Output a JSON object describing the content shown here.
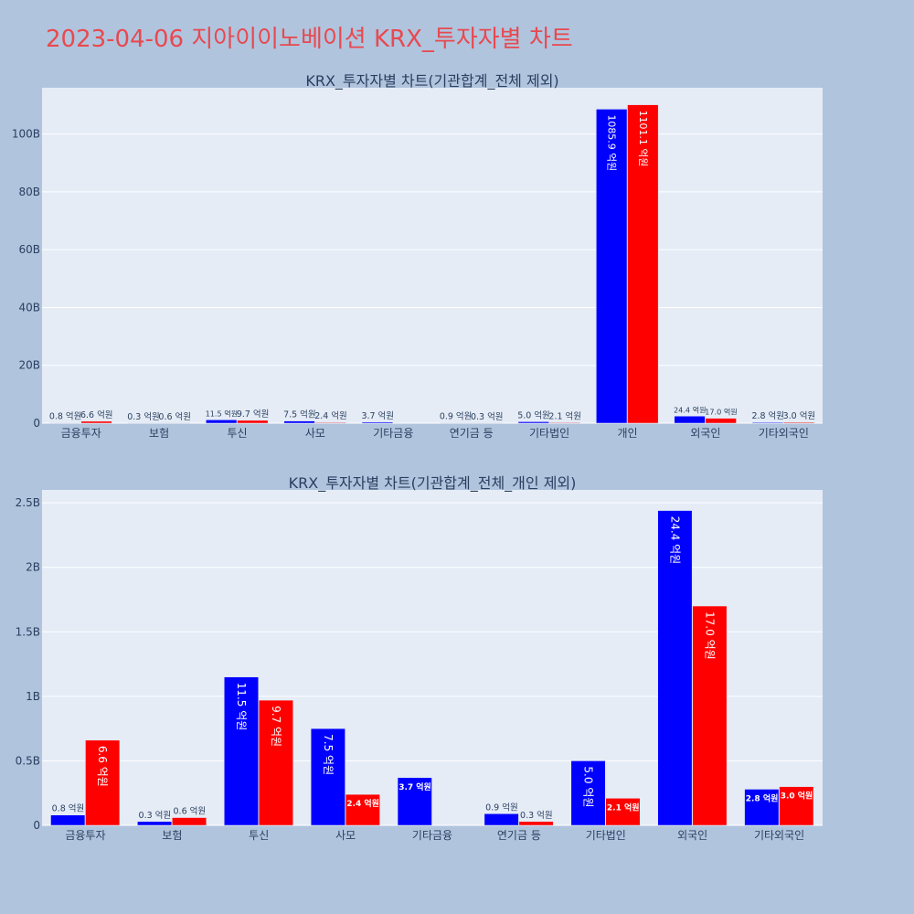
{
  "page": {
    "title": "2023-04-06 지아이이노베이션 KRX_투자자별 차트",
    "background": "#b0c4de",
    "title_color": "#e8494f"
  },
  "colors": {
    "buy": "#0000ff",
    "sell": "#ff0000",
    "plot_bg": "#e5ecf6"
  },
  "chart_data": [
    {
      "type": "bar",
      "title": "KRX_투자자별 차트(기관합계_전체 제외)",
      "categories": [
        "금융투자",
        "보험",
        "투신",
        "사모",
        "기타금융",
        "연기금 등",
        "기타법인",
        "개인",
        "외국인",
        "기타외국인"
      ],
      "series": [
        {
          "color": "#0000ff",
          "values": [
            0.08,
            0.03,
            1.15,
            0.75,
            0.37,
            0.09,
            0.5,
            108.59,
            2.44,
            0.28
          ],
          "labels": [
            "0.8 억원",
            "0.3 억원",
            "11.5 억원",
            "7.5 억원",
            "3.7 억원",
            "0.9 억원",
            "5.0 억원",
            "1085.9 억원",
            "24.4 억원",
            "2.8 억원"
          ]
        },
        {
          "color": "#ff0000",
          "values": [
            0.66,
            0.06,
            0.97,
            0.24,
            0.0,
            0.03,
            0.21,
            110.11,
            1.7,
            0.3
          ],
          "labels": [
            "6.6 억원",
            "0.6 억원",
            "9.7 억원",
            "2.4 억원",
            "",
            "0.3 억원",
            "2.1 억원",
            "1101.1 억원",
            "17.0 억원",
            "3.0 억원"
          ]
        }
      ],
      "ylim": [
        0,
        116
      ],
      "yticks": [
        0,
        20,
        40,
        60,
        80,
        100
      ],
      "ytick_labels": [
        "0",
        "20B",
        "40B",
        "60B",
        "80B",
        "100B"
      ],
      "grid": true,
      "legend": "none"
    },
    {
      "type": "bar",
      "title": "KRX_투자자별 차트(기관합계_전체_개인 제외)",
      "categories": [
        "금융투자",
        "보험",
        "투신",
        "사모",
        "기타금융",
        "연기금 등",
        "기타법인",
        "외국인",
        "기타외국인"
      ],
      "series": [
        {
          "color": "#0000ff",
          "values": [
            0.08,
            0.03,
            1.15,
            0.75,
            0.37,
            0.09,
            0.5,
            2.44,
            0.28
          ],
          "labels": [
            "0.8 억원",
            "0.3 억원",
            "11.5 억원",
            "7.5 억원",
            "3.7 억원",
            "0.9 억원",
            "5.0 억원",
            "24.4 억원",
            "2.8 억원"
          ]
        },
        {
          "color": "#ff0000",
          "values": [
            0.66,
            0.06,
            0.97,
            0.24,
            0.0,
            0.03,
            0.21,
            1.7,
            0.3
          ],
          "labels": [
            "6.6 억원",
            "0.6 억원",
            "9.7 억원",
            "2.4 억원",
            "",
            "0.3 억원",
            "2.1 억원",
            "17.0 억원",
            "3.0 억원"
          ]
        }
      ],
      "ylim": [
        0,
        2.6
      ],
      "yticks": [
        0,
        0.5,
        1,
        1.5,
        2,
        2.5
      ],
      "ytick_labels": [
        "0",
        "0.5B",
        "1B",
        "1.5B",
        "2B",
        "2.5B"
      ],
      "grid": true,
      "legend": "none"
    }
  ]
}
